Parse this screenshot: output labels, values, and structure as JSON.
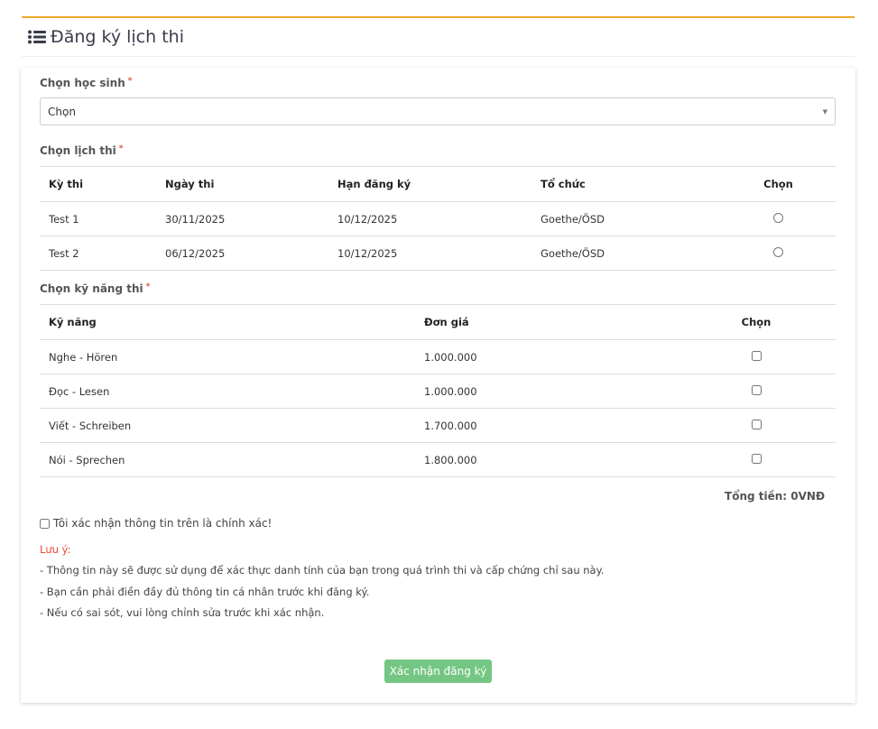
{
  "header": {
    "title": "Đăng ký lịch thi",
    "icon": "list-icon"
  },
  "student": {
    "label": "Chọn học sinh",
    "required": "*",
    "selected": "Chọn"
  },
  "schedule": {
    "label": "Chọn lịch thi",
    "required": "*",
    "columns": [
      "Kỳ thi",
      "Ngày thi",
      "Hạn đăng ký",
      "Tổ chức",
      "Chọn"
    ],
    "rows": [
      [
        "Test 1",
        "30/11/2025",
        "10/12/2025",
        "Goethe/ÖSD"
      ],
      [
        "Test 2",
        "06/12/2025",
        "10/12/2025",
        "Goethe/ÖSD"
      ]
    ]
  },
  "skills": {
    "label": "Chọn kỹ năng thi",
    "required": "*",
    "columns": [
      "Kỹ năng",
      "Đơn giá",
      "Chọn"
    ],
    "rows": [
      [
        "Nghe - Hören",
        "1.000.000"
      ],
      [
        "Đọc - Lesen",
        "1.000.000"
      ],
      [
        "Viết - Schreiben",
        "1.700.000"
      ],
      [
        "Nói - Sprechen",
        "1.800.000"
      ]
    ]
  },
  "total": "Tổng tiền: 0VNĐ",
  "confirm_label": "Tôi xác nhận thông tin trên là chính xác!",
  "notes": {
    "title": "Lưu ý:",
    "lines": [
      "- Thông tin này sẽ được sử dụng để xác thực danh tính của bạn trong quá trình thi và cấp chứng chỉ sau này.",
      "- Bạn cần phải điền đầy đủ thông tin cá nhân trước khi đăng ký.",
      "- Nếu có sai sót, vui lòng chỉnh sửa trước khi xác nhận."
    ]
  },
  "submit_label": "Xác nhận đăng ký",
  "colors": {
    "accent": "#f0a92a",
    "button": "#74c683",
    "required": "#e74c3c"
  }
}
